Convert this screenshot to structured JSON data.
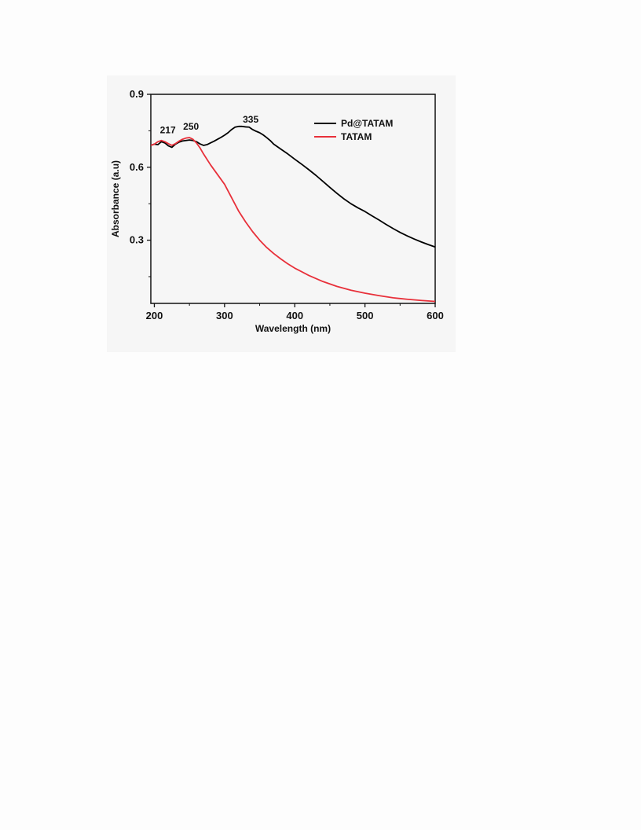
{
  "chart_data": {
    "type": "line",
    "title": "",
    "xlabel": "Wavelength (nm)",
    "ylabel": "Absorbance (a.u)",
    "xlim": [
      195,
      600
    ],
    "ylim": [
      0.04,
      0.9
    ],
    "xticks": [
      200,
      300,
      400,
      500,
      600
    ],
    "yticks": [
      0.3,
      0.6,
      0.9
    ],
    "ytick_labels": [
      "0.3",
      "0.6",
      "0.9"
    ],
    "grid": false,
    "legend": {
      "position": "top-right"
    },
    "annotations": [
      {
        "text": "217",
        "x": 217,
        "y": 0.72
      },
      {
        "text": "250",
        "x": 250,
        "y": 0.735
      },
      {
        "text": "335",
        "x": 335,
        "y": 0.765
      }
    ],
    "series": [
      {
        "name": "Pd@TATAM",
        "color": "#000000",
        "x": [
          195,
          200,
          205,
          210,
          215,
          220,
          225,
          230,
          235,
          240,
          245,
          250,
          255,
          260,
          265,
          270,
          275,
          280,
          285,
          290,
          295,
          300,
          305,
          310,
          315,
          320,
          325,
          330,
          335,
          340,
          345,
          350,
          355,
          360,
          365,
          370,
          375,
          380,
          390,
          400,
          410,
          420,
          430,
          440,
          450,
          460,
          470,
          480,
          490,
          500,
          510,
          520,
          530,
          540,
          550,
          560,
          570,
          580,
          590,
          600
        ],
        "y": [
          0.69,
          0.695,
          0.693,
          0.705,
          0.7,
          0.688,
          0.682,
          0.695,
          0.703,
          0.708,
          0.71,
          0.712,
          0.71,
          0.705,
          0.696,
          0.69,
          0.693,
          0.7,
          0.707,
          0.715,
          0.723,
          0.732,
          0.742,
          0.755,
          0.765,
          0.768,
          0.768,
          0.766,
          0.765,
          0.755,
          0.748,
          0.742,
          0.733,
          0.722,
          0.71,
          0.695,
          0.685,
          0.675,
          0.655,
          0.633,
          0.612,
          0.59,
          0.567,
          0.542,
          0.517,
          0.493,
          0.47,
          0.45,
          0.433,
          0.418,
          0.4,
          0.383,
          0.365,
          0.348,
          0.332,
          0.318,
          0.305,
          0.293,
          0.282,
          0.272
        ]
      },
      {
        "name": "TATAM",
        "color": "#e8303a",
        "x": [
          195,
          200,
          205,
          210,
          215,
          220,
          225,
          230,
          235,
          240,
          245,
          250,
          255,
          260,
          265,
          270,
          280,
          290,
          300,
          310,
          320,
          330,
          340,
          350,
          360,
          370,
          380,
          390,
          400,
          420,
          440,
          460,
          480,
          500,
          520,
          540,
          560,
          580,
          600
        ],
        "y": [
          0.69,
          0.695,
          0.705,
          0.71,
          0.705,
          0.697,
          0.69,
          0.697,
          0.707,
          0.715,
          0.72,
          0.722,
          0.715,
          0.7,
          0.68,
          0.655,
          0.61,
          0.57,
          0.53,
          0.475,
          0.42,
          0.375,
          0.335,
          0.3,
          0.27,
          0.245,
          0.223,
          0.203,
          0.185,
          0.155,
          0.13,
          0.11,
          0.094,
          0.082,
          0.072,
          0.063,
          0.057,
          0.052,
          0.048
        ]
      }
    ]
  }
}
